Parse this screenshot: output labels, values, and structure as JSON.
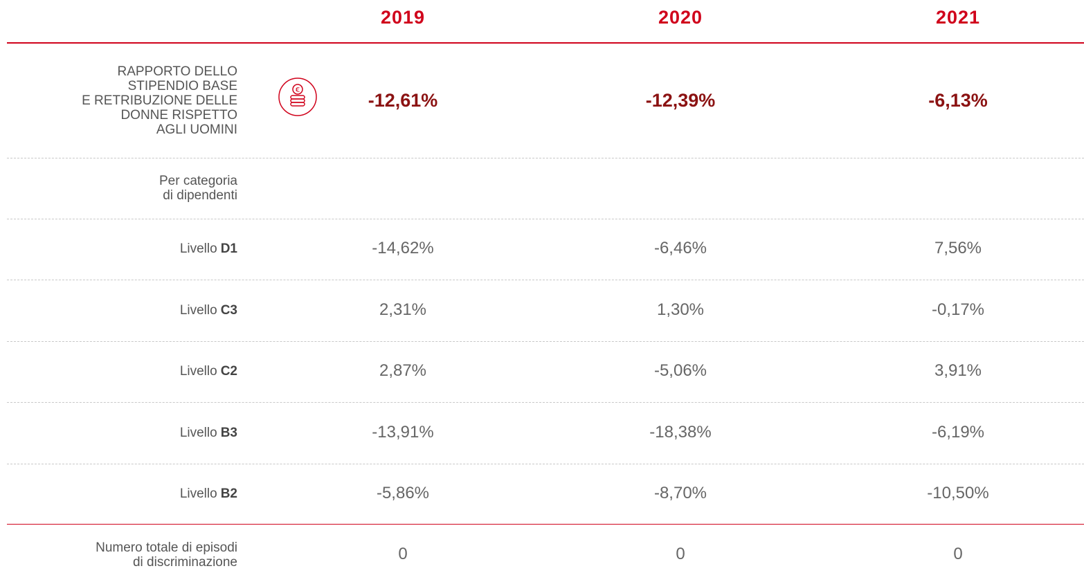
{
  "header": {
    "years": [
      "2019",
      "2020",
      "2021"
    ]
  },
  "table": {
    "main_row": {
      "label_lines": [
        "RAPPORTO DELLO",
        "STIPENDIO BASE",
        "E RETRIBUZIONE DELLE",
        "DONNE RISPETTO",
        "AGLI UOMINI"
      ],
      "values": [
        "-12,61%",
        "-12,39%",
        "-6,13%"
      ]
    },
    "subheader": {
      "label_lines": [
        "Per categoria",
        "di dipendenti"
      ]
    },
    "rows": [
      {
        "prefix": "Livello",
        "level": "D1",
        "values": [
          "-14,62%",
          "-6,46%",
          "7,56%"
        ]
      },
      {
        "prefix": "Livello",
        "level": "C3",
        "values": [
          "2,31%",
          "1,30%",
          "-0,17%"
        ]
      },
      {
        "prefix": "Livello",
        "level": "C2",
        "values": [
          "2,87%",
          "-5,06%",
          "3,91%"
        ]
      },
      {
        "prefix": "Livello",
        "level": "B3",
        "values": [
          "-13,91%",
          "-18,38%",
          "-6,19%"
        ]
      },
      {
        "prefix": "Livello",
        "level": "B2",
        "values": [
          "-5,86%",
          "-8,70%",
          "-10,50%"
        ]
      }
    ],
    "total_row": {
      "label_lines": [
        "Numero totale di episodi",
        "di discriminazione"
      ],
      "values": [
        "0",
        "0",
        "0"
      ]
    }
  }
}
